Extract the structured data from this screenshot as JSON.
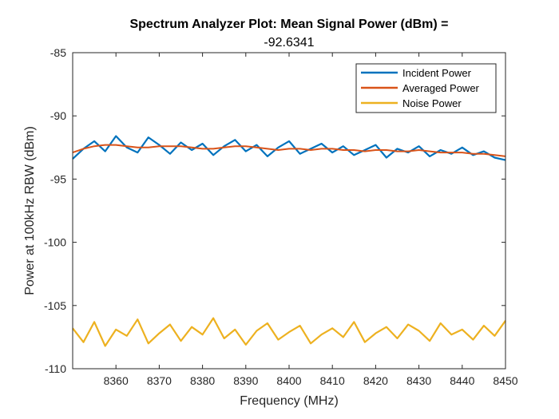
{
  "chart_data": {
    "type": "line",
    "title": "Spectrum Analyzer Plot: Mean Signal Power (dBm) =",
    "subtitle": "-92.6341",
    "xlabel": "Frequency (MHz)",
    "ylabel": "Power at 100kHz RBW (dBm)",
    "xlim": [
      8350,
      8450
    ],
    "ylim": [
      -110,
      -85
    ],
    "xticks": [
      8360,
      8370,
      8380,
      8390,
      8400,
      8410,
      8420,
      8430,
      8440,
      8450
    ],
    "yticks": [
      -110,
      -105,
      -100,
      -95,
      -90,
      -85
    ],
    "grid": false,
    "legend_position": "top-right",
    "x": [
      8350,
      8352.5,
      8355,
      8357.5,
      8360,
      8362.5,
      8365,
      8367.5,
      8370,
      8372.5,
      8375,
      8377.5,
      8380,
      8382.5,
      8385,
      8387.5,
      8390,
      8392.5,
      8395,
      8397.5,
      8400,
      8402.5,
      8405,
      8407.5,
      8410,
      8412.5,
      8415,
      8417.5,
      8420,
      8422.5,
      8425,
      8427.5,
      8430,
      8432.5,
      8435,
      8437.5,
      8440,
      8442.5,
      8445,
      8447.5,
      8450
    ],
    "series": [
      {
        "name": "Incident Power",
        "color": "#0072BD",
        "values": [
          -93.4,
          -92.6,
          -92.0,
          -92.8,
          -91.6,
          -92.5,
          -92.9,
          -91.7,
          -92.3,
          -93.0,
          -92.1,
          -92.7,
          -92.2,
          -93.1,
          -92.4,
          -91.9,
          -92.8,
          -92.3,
          -93.2,
          -92.5,
          -92.0,
          -93.0,
          -92.6,
          -92.2,
          -92.9,
          -92.4,
          -93.1,
          -92.7,
          -92.3,
          -93.3,
          -92.6,
          -92.9,
          -92.4,
          -93.2,
          -92.7,
          -93.0,
          -92.5,
          -93.1,
          -92.8,
          -93.3,
          -93.5
        ]
      },
      {
        "name": "Averaged Power",
        "color": "#D95319",
        "values": [
          -92.9,
          -92.6,
          -92.4,
          -92.3,
          -92.3,
          -92.4,
          -92.5,
          -92.5,
          -92.4,
          -92.4,
          -92.4,
          -92.5,
          -92.6,
          -92.6,
          -92.5,
          -92.4,
          -92.4,
          -92.5,
          -92.6,
          -92.7,
          -92.6,
          -92.6,
          -92.7,
          -92.6,
          -92.6,
          -92.7,
          -92.7,
          -92.8,
          -92.7,
          -92.7,
          -92.8,
          -92.8,
          -92.7,
          -92.8,
          -92.9,
          -92.9,
          -92.9,
          -93.0,
          -93.0,
          -93.1,
          -93.2
        ]
      },
      {
        "name": "Noise Power",
        "color": "#EDB120",
        "values": [
          -106.8,
          -107.9,
          -106.3,
          -108.2,
          -106.9,
          -107.4,
          -106.1,
          -108.0,
          -107.2,
          -106.5,
          -107.8,
          -106.7,
          -107.3,
          -106.0,
          -107.6,
          -106.9,
          -108.1,
          -107.0,
          -106.4,
          -107.7,
          -107.1,
          -106.6,
          -108.0,
          -107.3,
          -106.8,
          -107.5,
          -106.3,
          -107.9,
          -107.2,
          -106.7,
          -107.6,
          -106.5,
          -107.0,
          -107.8,
          -106.4,
          -107.3,
          -106.9,
          -107.7,
          -106.6,
          -107.4,
          -106.2
        ]
      }
    ]
  }
}
